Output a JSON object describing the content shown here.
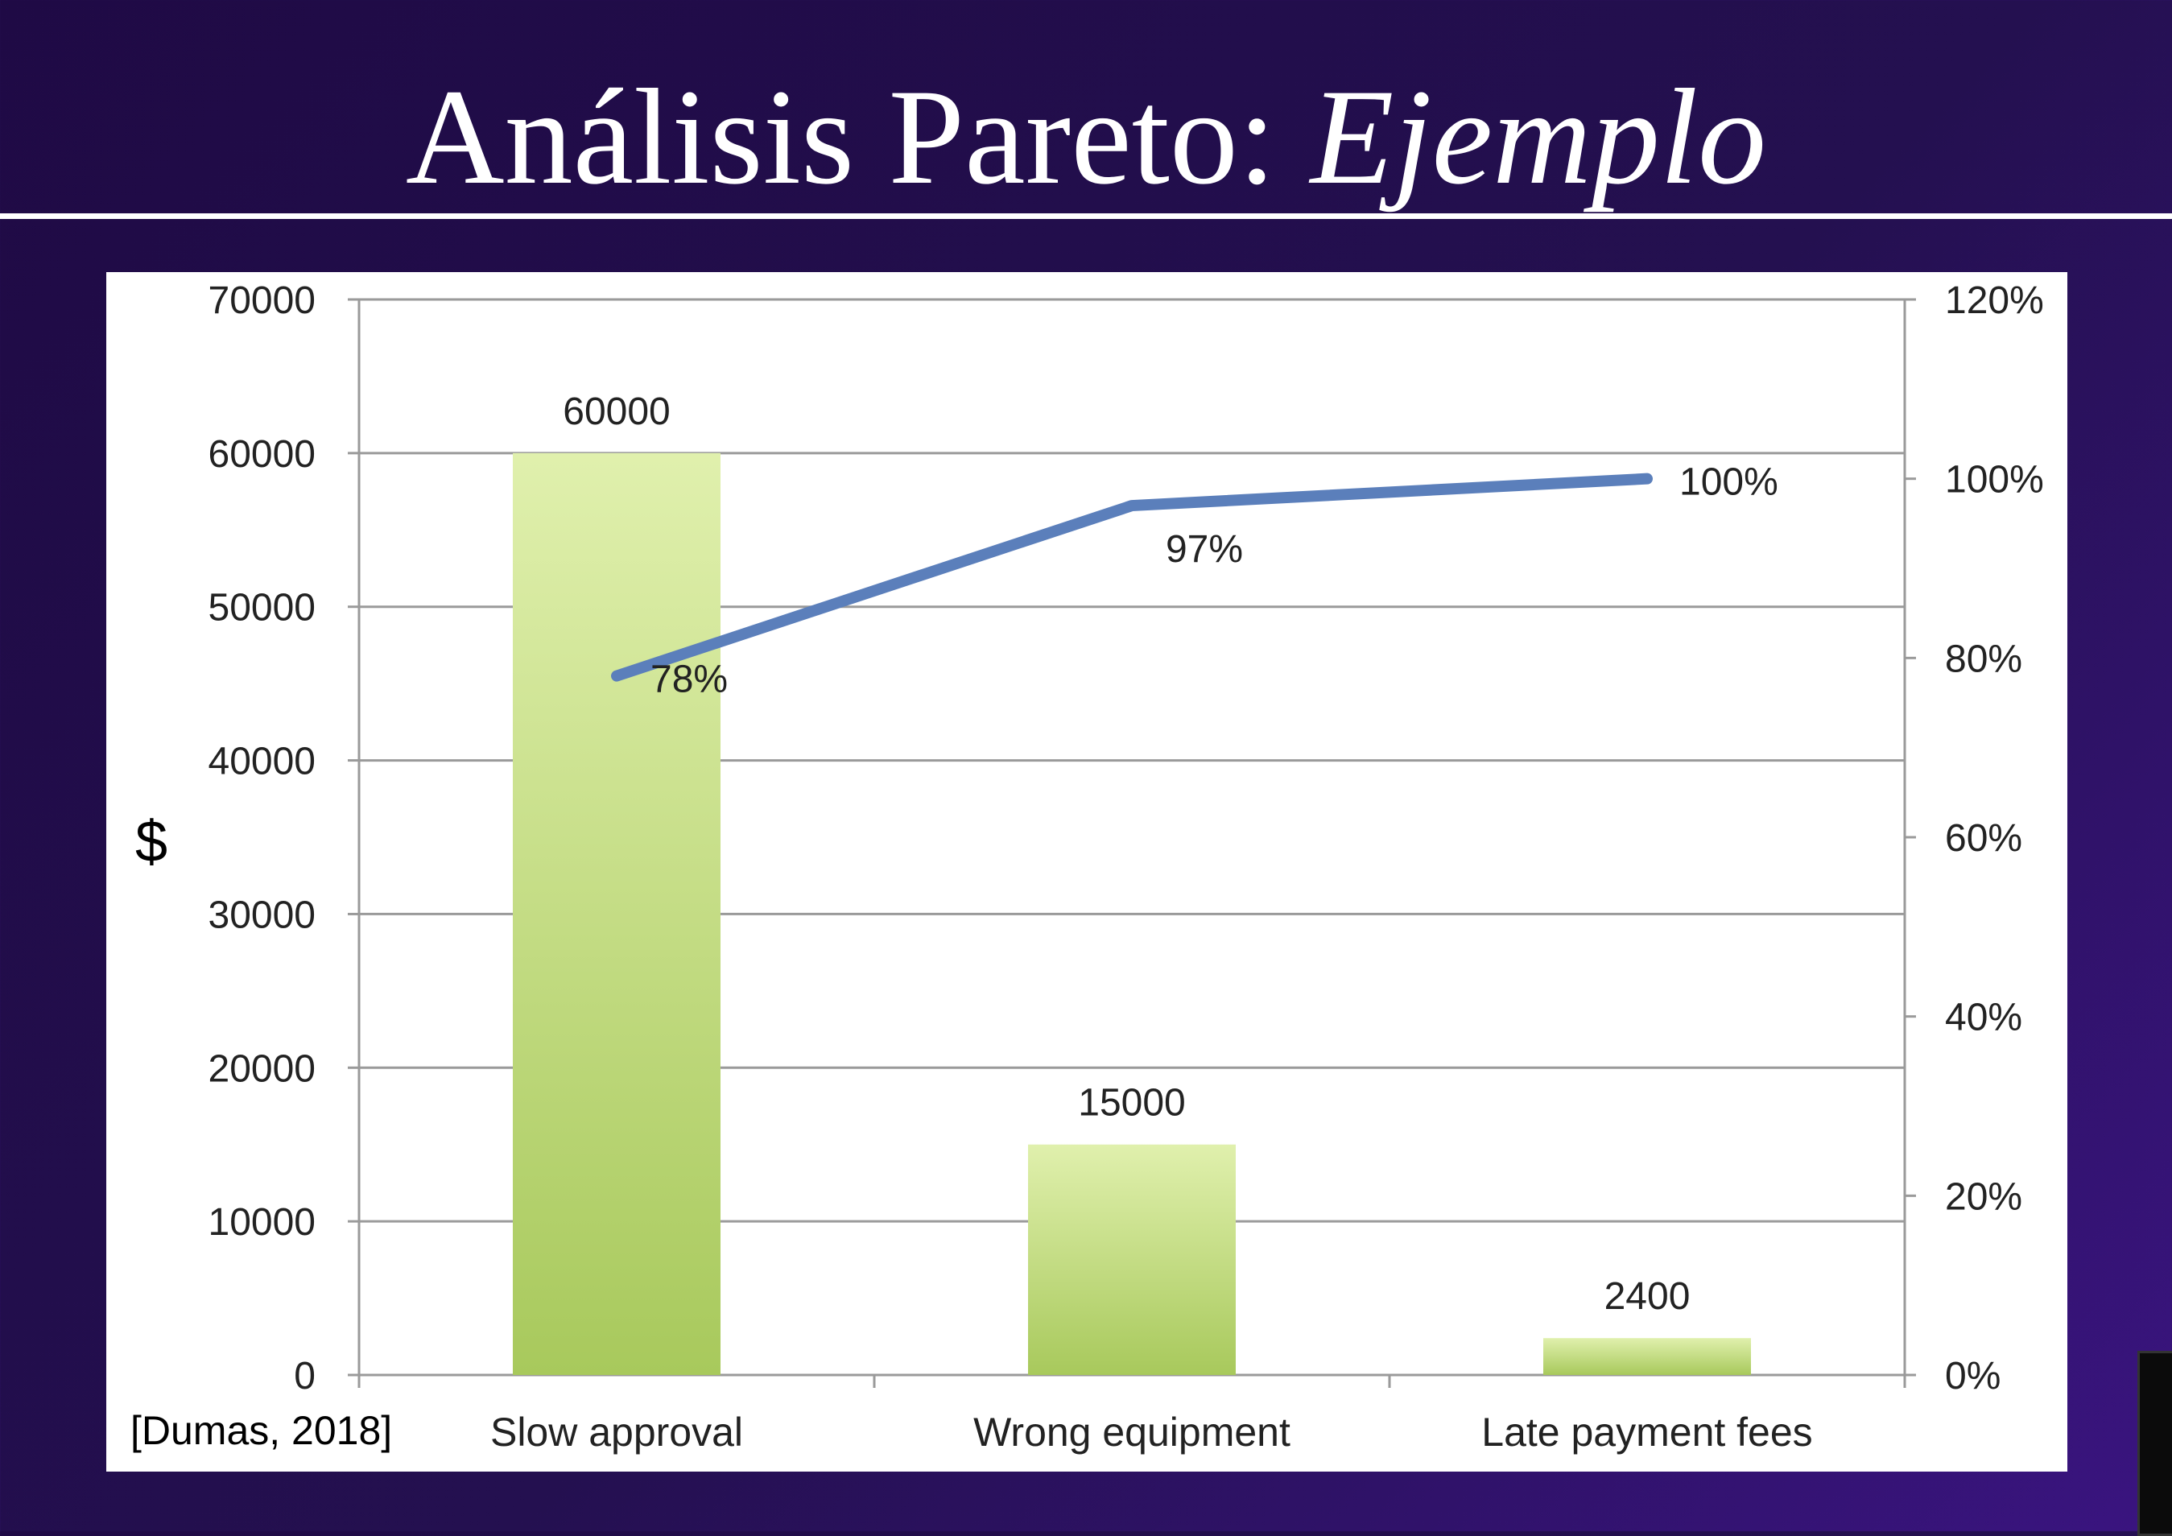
{
  "slide": {
    "title_main": "Análisis Pareto: ",
    "title_emph": "Ejemplo",
    "citation": "[Dumas, 2018]"
  },
  "chart_data": {
    "type": "bar",
    "categories": [
      "Slow approval",
      "Wrong equipment",
      "Late payment fees"
    ],
    "series": [
      {
        "type": "bar",
        "values": [
          60000,
          15000,
          2400
        ],
        "data_labels": [
          "60000",
          "15000",
          "2400"
        ],
        "axis": "left"
      },
      {
        "type": "line",
        "values": [
          78,
          97,
          100
        ],
        "data_labels": [
          "78%",
          "97%",
          "100%"
        ],
        "axis": "right"
      }
    ],
    "ylabel": "$",
    "ylim": [
      0,
      70000
    ],
    "y_ticks": [
      "0",
      "10000",
      "20000",
      "30000",
      "40000",
      "50000",
      "60000",
      "70000"
    ],
    "y2lim": [
      0,
      120
    ],
    "y2_ticks": [
      "0%",
      "20%",
      "40%",
      "60%",
      "80%",
      "100%",
      "120%"
    ],
    "grid": true,
    "colors": {
      "bar_top": "#e0f0ad",
      "bar_bottom": "#a8c95c",
      "line": "#5b7fbb",
      "grid": "#9a9a9a",
      "background": "#ffffff"
    }
  }
}
